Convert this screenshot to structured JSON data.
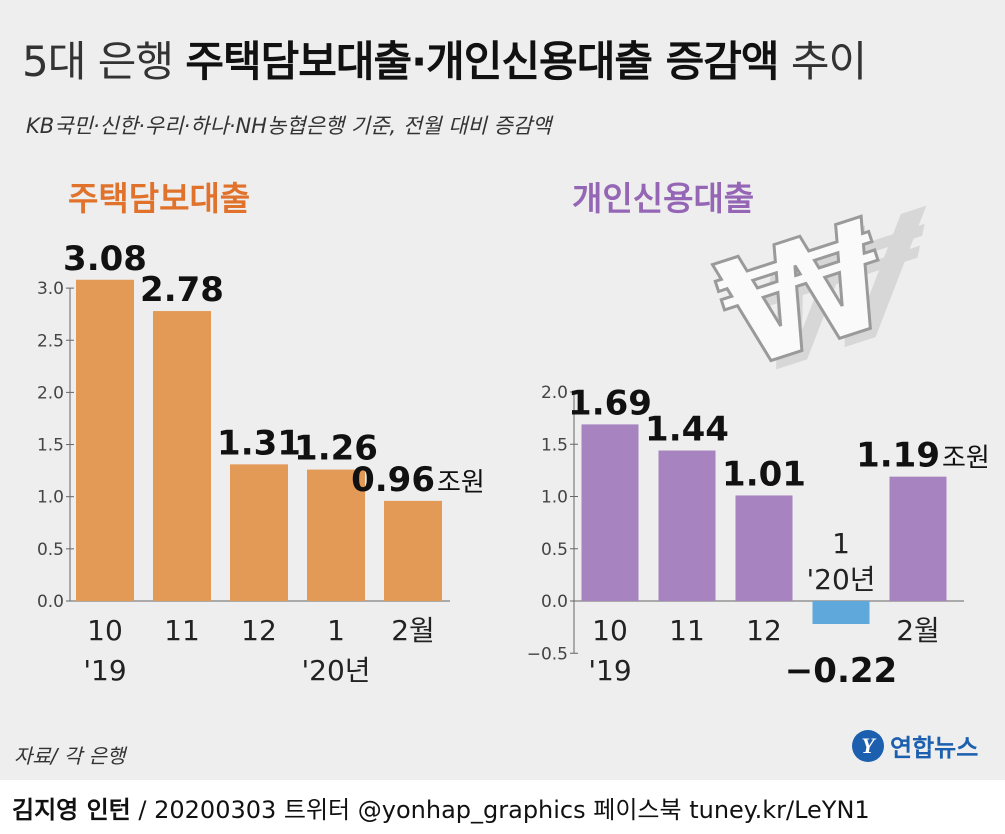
{
  "header": {
    "title_light_1": "5대 은행 ",
    "title_bold": "주택담보대출·개인신용대출 증감액",
    "title_light_2": " 추이",
    "subtitle": "KB국민·신한·우리·하나·NH농협은행 기준,  전월 대비 증감액"
  },
  "colors": {
    "mortgage": "#e39a57",
    "mortgage_title": "#e0722b",
    "credit": "#a784bf",
    "credit_title": "#9466b5",
    "negative": "#5fa8dc"
  },
  "chart_data": [
    {
      "type": "bar",
      "title": "주택담보대출",
      "categories": [
        "10",
        "11",
        "12",
        "1",
        "2월"
      ],
      "category_sublabels": [
        "'19",
        "",
        "",
        "'20년",
        ""
      ],
      "values": [
        3.08,
        2.78,
        1.31,
        1.26,
        0.96
      ],
      "value_labels": [
        "3.08",
        "2.78",
        "1.31",
        "1.26",
        "0.96"
      ],
      "unit": "조원",
      "ylim": [
        0,
        3.0
      ],
      "yticks": [
        "0.0",
        "0.5",
        "1.0",
        "1.5",
        "2.0",
        "2.5",
        "3.0"
      ],
      "ytick_values": [
        0,
        0.5,
        1.0,
        1.5,
        2.0,
        2.5,
        3.0
      ]
    },
    {
      "type": "bar",
      "title": "개인신용대출",
      "categories": [
        "10",
        "11",
        "12",
        "1",
        "2월"
      ],
      "category_sublabels": [
        "'19",
        "",
        "",
        "'20년",
        ""
      ],
      "values": [
        1.69,
        1.44,
        1.01,
        -0.22,
        1.19
      ],
      "value_labels": [
        "1.69",
        "1.44",
        "1.01",
        "−0.22",
        "1.19"
      ],
      "unit": "조원",
      "ylim": [
        -0.5,
        2.0
      ],
      "yticks": [
        "−0.5",
        "0.0",
        "0.5",
        "1.0",
        "1.5",
        "2.0"
      ],
      "ytick_values": [
        -0.5,
        0,
        0.5,
        1.0,
        1.5,
        2.0
      ]
    }
  ],
  "won_symbol": "₩",
  "source": "자료/ 각 은행",
  "logo_text": "연합뉴스",
  "logo_mark": "Y",
  "footer": {
    "author": "김지영 인턴",
    "rest": " / 20200303  트위터 @yonhap_graphics  페이스북 tuney.kr/LeYN1"
  }
}
